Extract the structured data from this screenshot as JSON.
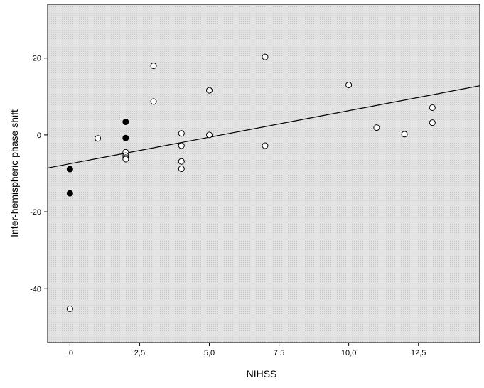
{
  "chart_data": {
    "type": "scatter",
    "title": "",
    "xlabel": "NIHSS",
    "ylabel": "Inter-hemispheric phase shift",
    "xlim": [
      -0.8,
      14.7
    ],
    "ylim": [
      -54,
      34
    ],
    "x_ticks": [
      0,
      2.5,
      5,
      7.5,
      10,
      12.5
    ],
    "x_tick_labels": [
      ",0",
      "2,5",
      "5,0",
      "7,5",
      "10,0",
      "12,5"
    ],
    "y_ticks": [
      20,
      0,
      -20,
      -40
    ],
    "y_tick_labels": [
      "20",
      "0",
      "-20",
      "-40"
    ],
    "grid": false,
    "legend": "none",
    "colors": {
      "plot_background": "#e2e2e2",
      "hatch": "#c8c8c8",
      "open_marker": "#ffffff",
      "filled_marker": "#000000",
      "line": "#000000"
    },
    "series": [
      {
        "marker": "open-circle",
        "points": [
          {
            "x": 0,
            "y": -45.2
          },
          {
            "x": 1,
            "y": -0.9
          },
          {
            "x": 2,
            "y": -4.5
          },
          {
            "x": 2,
            "y": -5.4
          },
          {
            "x": 2,
            "y": -5.9
          },
          {
            "x": 2,
            "y": -6.3
          },
          {
            "x": 3,
            "y": 18.0
          },
          {
            "x": 3,
            "y": 8.7
          },
          {
            "x": 4,
            "y": 0.4
          },
          {
            "x": 4,
            "y": -2.8
          },
          {
            "x": 4,
            "y": -6.9
          },
          {
            "x": 4,
            "y": -8.8
          },
          {
            "x": 5,
            "y": 11.6
          },
          {
            "x": 5,
            "y": 0.0
          },
          {
            "x": 7,
            "y": 20.3
          },
          {
            "x": 7,
            "y": -2.8
          },
          {
            "x": 10,
            "y": 13.0
          },
          {
            "x": 11,
            "y": 1.9
          },
          {
            "x": 12,
            "y": 0.2
          },
          {
            "x": 13,
            "y": 7.1
          },
          {
            "x": 13,
            "y": 3.2
          }
        ]
      },
      {
        "marker": "filled-circle",
        "points": [
          {
            "x": 0,
            "y": -8.9
          },
          {
            "x": 0,
            "y": -15.2
          },
          {
            "x": 2,
            "y": 3.4
          },
          {
            "x": 2,
            "y": -0.8
          }
        ]
      }
    ],
    "fit_line": {
      "x": [
        -0.8,
        14.7
      ],
      "y": [
        -8.6,
        12.8
      ]
    }
  }
}
